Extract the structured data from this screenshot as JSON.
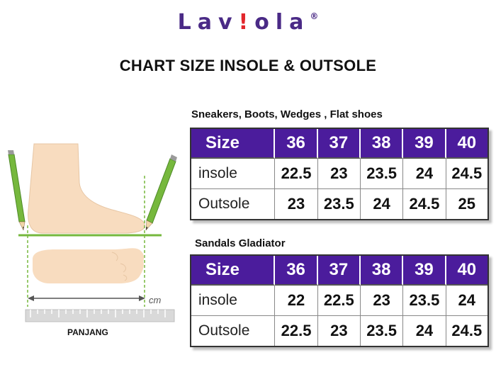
{
  "brand": {
    "logo_main": "Lav",
    "logo_accent": "!",
    "logo_tail": "ola",
    "logo_mark": "®"
  },
  "title": "CHART SIZE INSOLE & OUTSOLE",
  "illustration": {
    "unit_label": "cm",
    "caption": "PANJANG"
  },
  "tables": [
    {
      "heading": "Sneakers, Boots, Wedges , Flat shoes",
      "header_label": "Size",
      "sizes": [
        "36",
        "37",
        "38",
        "39",
        "40"
      ],
      "rows": [
        {
          "label": "insole",
          "values": [
            "22.5",
            "23",
            "23.5",
            "24",
            "24.5"
          ]
        },
        {
          "label": "Outsole",
          "values": [
            "23",
            "23.5",
            "24",
            "24.5",
            "25"
          ]
        }
      ]
    },
    {
      "heading": "Sandals Gladiator",
      "header_label": "Size",
      "sizes": [
        "36",
        "37",
        "38",
        "39",
        "40"
      ],
      "rows": [
        {
          "label": "insole",
          "values": [
            "22",
            "22.5",
            "23",
            "23.5",
            "24"
          ]
        },
        {
          "label": "Outsole",
          "values": [
            "22.5",
            "23",
            "23.5",
            "24",
            "24.5"
          ]
        }
      ]
    }
  ],
  "colors": {
    "brand_purple": "#4a2a86",
    "header_purple": "#4b1c9c",
    "accent_red": "#e2262b",
    "skin": "#f8dcbf",
    "pencil_green": "#6db33f"
  }
}
